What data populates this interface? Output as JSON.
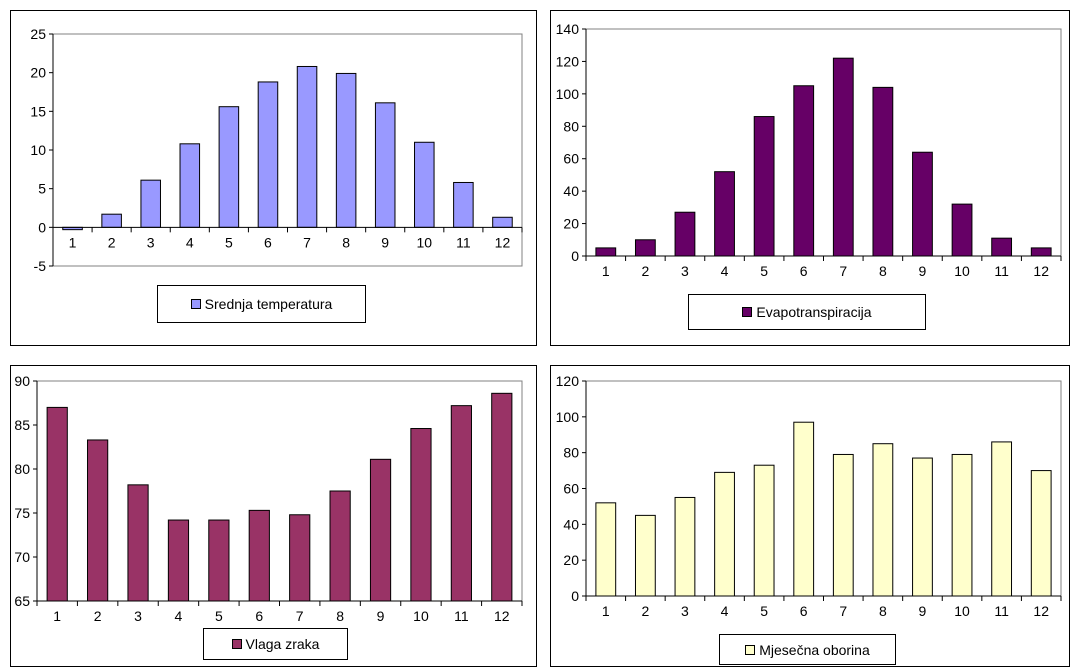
{
  "chart_data": [
    {
      "type": "bar",
      "categories": [
        "1",
        "2",
        "3",
        "4",
        "5",
        "6",
        "7",
        "8",
        "9",
        "10",
        "11",
        "12"
      ],
      "series": [
        {
          "name": "Srednja temperatura",
          "values": [
            -0.3,
            1.7,
            6.1,
            10.8,
            15.6,
            18.8,
            20.8,
            19.9,
            16.1,
            11.0,
            5.8,
            1.3
          ]
        }
      ],
      "ylim": [
        -5,
        25
      ],
      "yticks": [
        "-5",
        "0",
        "5",
        "10",
        "15",
        "20",
        "25"
      ],
      "grid": false,
      "legend": "bottom",
      "color": "#9999FF"
    },
    {
      "type": "bar",
      "categories": [
        "1",
        "2",
        "3",
        "4",
        "5",
        "6",
        "7",
        "8",
        "9",
        "10",
        "11",
        "12"
      ],
      "series": [
        {
          "name": "Evapotranspiracija",
          "values": [
            5,
            10,
            27,
            52,
            86,
            105,
            122,
            104,
            64,
            32,
            11,
            5
          ]
        }
      ],
      "ylim": [
        0,
        140
      ],
      "yticks": [
        "0",
        "20",
        "40",
        "60",
        "80",
        "100",
        "120",
        "140"
      ],
      "grid": false,
      "legend": "bottom",
      "color": "#660066"
    },
    {
      "type": "bar",
      "categories": [
        "1",
        "2",
        "3",
        "4",
        "5",
        "6",
        "7",
        "8",
        "9",
        "10",
        "11",
        "12"
      ],
      "series": [
        {
          "name": "Vlaga zraka",
          "values": [
            87.0,
            83.3,
            78.2,
            74.2,
            74.2,
            75.3,
            74.8,
            77.5,
            81.1,
            84.6,
            87.2,
            88.6
          ]
        }
      ],
      "ylim": [
        65,
        90
      ],
      "yticks": [
        "65",
        "70",
        "75",
        "80",
        "85",
        "90"
      ],
      "grid": false,
      "legend": "bottom",
      "color": "#993366"
    },
    {
      "type": "bar",
      "categories": [
        "1",
        "2",
        "3",
        "4",
        "5",
        "6",
        "7",
        "8",
        "9",
        "10",
        "11",
        "12"
      ],
      "series": [
        {
          "name": "Mjesečna oborina",
          "values": [
            52,
            45,
            55,
            69,
            73,
            97,
            79,
            85,
            77,
            79,
            86,
            70
          ]
        }
      ],
      "ylim": [
        0,
        120
      ],
      "yticks": [
        "0",
        "20",
        "40",
        "60",
        "80",
        "100",
        "120"
      ],
      "grid": false,
      "legend": "bottom",
      "color": "#FFFFCC"
    }
  ]
}
